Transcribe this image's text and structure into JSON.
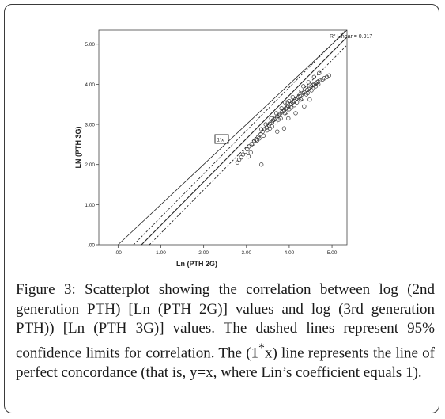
{
  "chart_data": {
    "type": "scatter",
    "xlabel": "Ln (PTH 2G)",
    "ylabel": "LN (PTH 3G)",
    "xlim": [
      -0.45,
      5.35
    ],
    "ylim": [
      0,
      5.35
    ],
    "x_ticks": [
      0,
      1,
      2,
      3,
      4,
      5
    ],
    "x_tick_labels": [
      ".00",
      "1.00",
      "2.00",
      "3.00",
      "4.00",
      "5.00"
    ],
    "y_ticks": [
      0,
      1,
      2,
      3,
      4,
      5
    ],
    "y_tick_labels": [
      ".00",
      "1.00",
      "2.00",
      "3.00",
      "4.00",
      "5.00"
    ],
    "legend_text": "R² Linear = 0.917",
    "legend_position": "top-right",
    "identity_marker": "1*x",
    "identity_line": {
      "slope": 1,
      "intercept": 0
    },
    "fit_line": {
      "slope": 1.078,
      "intercept": -0.59
    },
    "ci_lower": {
      "slope": 1.078,
      "intercept": -0.79
    },
    "ci_upper": {
      "slope": 1.078,
      "intercept": -0.39
    },
    "grid": false,
    "points": {
      "x": [
        2.83,
        2.88,
        2.92,
        2.97,
        3.02,
        2.79,
        3.06,
        3.12,
        3.18,
        3.22,
        3.28,
        3.33,
        3.38,
        3.42,
        3.47,
        3.52,
        3.55,
        3.58,
        3.62,
        3.65,
        3.68,
        3.72,
        3.75,
        3.78,
        3.82,
        3.85,
        3.88,
        3.92,
        3.95,
        3.98,
        4.02,
        4.05,
        4.08,
        4.12,
        4.15,
        4.18,
        4.22,
        4.25,
        4.28,
        4.32,
        4.35,
        4.38,
        4.42,
        4.45,
        4.48,
        4.52,
        4.55,
        4.58,
        4.62,
        4.65,
        4.68,
        4.72,
        4.78,
        4.82,
        4.88,
        4.93,
        3.35,
        3.45,
        3.58,
        3.7,
        3.82,
        3.95,
        4.08,
        4.2,
        4.33,
        4.45,
        4.58,
        4.7,
        3.25,
        3.4,
        3.55,
        3.68,
        3.8,
        3.93,
        4.05,
        4.18,
        4.3,
        4.43,
        4.55,
        4.68,
        3.15,
        3.3,
        3.48,
        3.6,
        3.75,
        3.9,
        4.0,
        4.12,
        4.27,
        4.4,
        4.52,
        4.62,
        3.9,
        4.0,
        3.88,
        4.35,
        3.1,
        3.35,
        3.98,
        4.15,
        4.48,
        3.72,
        3.62,
        3.05
      ],
      "y": [
        2.12,
        2.18,
        2.25,
        2.32,
        2.38,
        2.05,
        2.45,
        2.5,
        2.58,
        2.62,
        2.7,
        2.75,
        2.82,
        2.88,
        2.92,
        2.98,
        3.02,
        3.05,
        3.1,
        3.12,
        3.16,
        3.2,
        3.22,
        3.26,
        3.3,
        3.33,
        3.36,
        3.4,
        3.43,
        3.45,
        3.5,
        3.52,
        3.55,
        3.58,
        3.62,
        3.65,
        3.68,
        3.7,
        3.73,
        3.78,
        3.8,
        3.82,
        3.86,
        3.88,
        3.92,
        3.95,
        3.98,
        4.0,
        4.02,
        4.05,
        4.07,
        4.1,
        4.12,
        4.15,
        4.18,
        4.22,
        2.88,
        3.0,
        3.15,
        3.28,
        3.4,
        3.55,
        3.68,
        3.82,
        3.95,
        4.05,
        4.18,
        4.28,
        2.6,
        2.72,
        2.9,
        3.05,
        3.15,
        3.3,
        3.42,
        3.55,
        3.65,
        3.78,
        3.9,
        4.0,
        2.52,
        2.65,
        2.85,
        2.95,
        3.12,
        3.28,
        3.38,
        3.48,
        3.62,
        3.75,
        3.85,
        3.95,
        3.55,
        3.58,
        2.9,
        3.45,
        2.3,
        2.0,
        3.15,
        3.28,
        3.62,
        2.82,
        3.1,
        2.2
      ]
    }
  },
  "caption": {
    "label": "Figure 3:",
    "text": "Scatterplot showing the correlation between log (2nd generation PTH) [Ln (PTH 2G)] values and log (3rd generation PTH)) [Ln (PTH 3G)] values. The dashed lines represent 95% confidence limits for correlation. The (1",
    "sup": "*",
    "text2": "x) line represents the line of perfect concordance (that is, y=x, where Lin’s coefficient equals 1)."
  }
}
